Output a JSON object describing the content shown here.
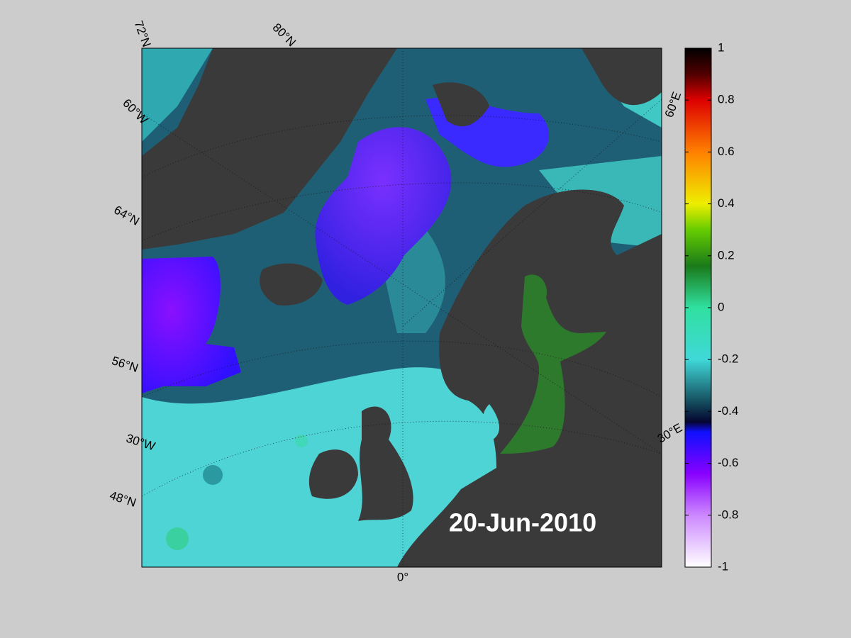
{
  "date_label": "20-Jun-2010",
  "graticule_labels": {
    "lat_72": "72°N",
    "lat_80": "80°N",
    "lon_60w": "60°W",
    "lat_64": "64°N",
    "lat_56": "56°N",
    "lon_30w": "30°W",
    "lat_48": "48°N",
    "lon_0": "0°",
    "lon_60e": "60°E",
    "lon_30e": "30°E"
  },
  "colorbar": {
    "ylim": [
      -1,
      1
    ],
    "ticks": [
      1,
      0.8,
      0.6,
      0.4,
      0.2,
      0,
      -0.2,
      -0.4,
      -0.6,
      -0.8,
      -1
    ]
  }
}
